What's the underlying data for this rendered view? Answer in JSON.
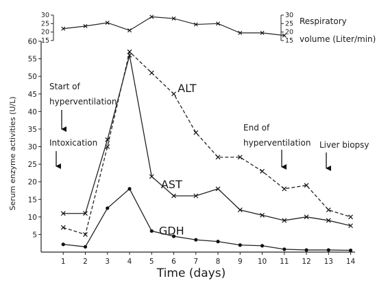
{
  "chart_data": [
    {
      "type": "line",
      "title": "",
      "xlabel": "Time (days)",
      "ylabel": "Serum enzyme activities (U/L)",
      "x": [
        1,
        2,
        3,
        4,
        5,
        6,
        7,
        8,
        9,
        10,
        11,
        12,
        13,
        14
      ],
      "xlim": [
        0,
        14.2
      ],
      "ylim": [
        0,
        60
      ],
      "x_ticks": [
        "1",
        "2",
        "3",
        "4",
        "5",
        "6",
        "7",
        "8",
        "9",
        "10",
        "11",
        "12",
        "13",
        "14"
      ],
      "y_ticks": [
        "5",
        "10",
        "15",
        "20",
        "25",
        "30",
        "35",
        "40",
        "45",
        "50",
        "55",
        "60"
      ],
      "grid": false,
      "series": [
        {
          "name": "ALT",
          "style": "dashed",
          "marker": "x",
          "color": "#222222",
          "values": [
            7,
            5,
            30,
            57,
            51,
            45,
            34,
            27,
            27,
            23,
            18,
            19,
            12,
            10
          ]
        },
        {
          "name": "AST",
          "style": "solid",
          "marker": "x",
          "color": "#222222",
          "values": [
            11,
            11,
            32,
            56,
            21.5,
            16,
            16,
            18,
            12,
            10.5,
            9,
            10,
            9,
            7.5
          ]
        },
        {
          "name": "GDH",
          "style": "solid",
          "marker": "dot",
          "color": "#222222",
          "values": [
            2.2,
            1.5,
            12.5,
            18,
            6,
            4.5,
            3.5,
            3,
            2,
            1.8,
            0.8,
            0.6,
            0.6,
            0.5
          ]
        }
      ],
      "annotations": [
        {
          "lines": [
            "Start of",
            "hyperventilation"
          ],
          "x": 1,
          "arrow": true
        },
        {
          "lines": [
            "Intoxication"
          ],
          "x": 1,
          "arrow": true
        },
        {
          "lines": [
            "End of",
            "hyperventilation"
          ],
          "x": 11,
          "arrow": true
        },
        {
          "lines": [
            "Liver biopsy"
          ],
          "x": 13,
          "arrow": true
        }
      ]
    },
    {
      "type": "line",
      "title": "",
      "ylabel": "Respiratory volume (Liter/min)",
      "ylabel_lines": [
        "Respiratory",
        "volume (Liter/min)"
      ],
      "x": [
        1,
        2,
        3,
        4,
        5,
        6,
        7,
        8,
        9,
        10,
        11
      ],
      "ylim": [
        15,
        30
      ],
      "y_ticks": [
        "15",
        "20",
        "25",
        "30"
      ],
      "series": [
        {
          "name": "",
          "style": "solid",
          "marker": "x",
          "color": "#222222",
          "values": [
            22,
            23.5,
            25.5,
            21,
            29,
            28,
            24.5,
            25,
            19.5,
            19.5,
            18
          ]
        }
      ]
    }
  ]
}
